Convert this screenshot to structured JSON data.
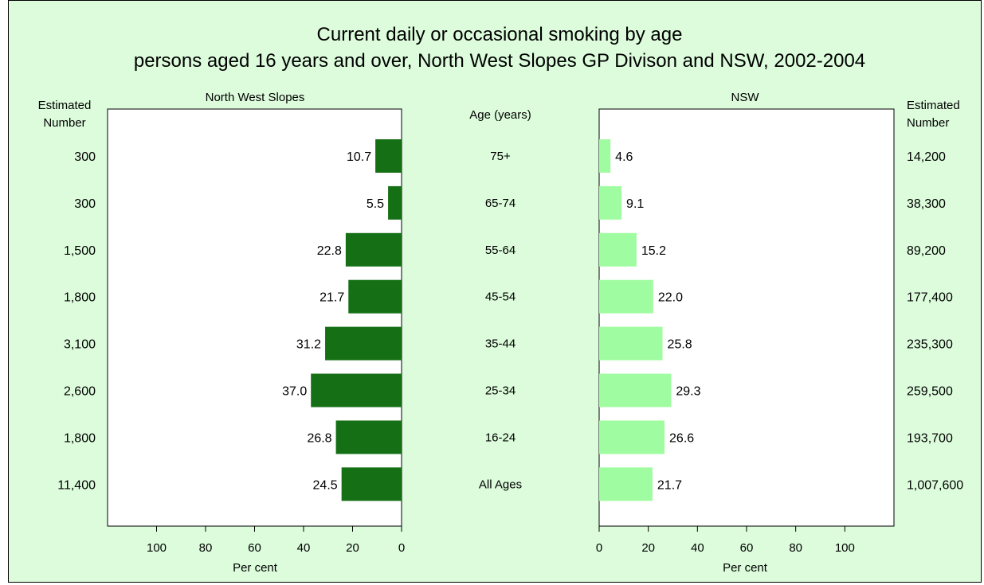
{
  "chart_data": {
    "type": "bar",
    "orientation": "horizontal",
    "title_line1": "Current daily or occasional smoking by age",
    "title_line2": "persons aged 16 years and over, North West Slopes GP Divison and NSW, 2002-2004",
    "center_label": "Age (years)",
    "estimated_label_line1": "Estimated",
    "estimated_label_line2": "Number",
    "xlabel": "Per cent",
    "xlim": [
      0,
      120
    ],
    "ticks": [
      0,
      20,
      40,
      60,
      80,
      100
    ],
    "categories": [
      "75+",
      "65-74",
      "55-64",
      "45-54",
      "35-44",
      "25-34",
      "16-24",
      "All Ages"
    ],
    "colors": {
      "left": "#157015",
      "right": "#a0fca0",
      "background": "#dcfcdc"
    },
    "series": [
      {
        "name": "North West Slopes",
        "side": "left",
        "values": [
          10.7,
          5.5,
          22.8,
          21.7,
          31.2,
          37.0,
          26.8,
          24.5
        ],
        "value_labels": [
          "10.7",
          "5.5",
          "22.8",
          "21.7",
          "31.2",
          "37.0",
          "26.8",
          "24.5"
        ],
        "estimated": [
          "300",
          "300",
          "1,500",
          "1,800",
          "3,100",
          "2,600",
          "1,800",
          "11,400"
        ]
      },
      {
        "name": "NSW",
        "side": "right",
        "values": [
          4.6,
          9.1,
          15.2,
          22.0,
          25.8,
          29.3,
          26.6,
          21.7
        ],
        "value_labels": [
          "4.6",
          "9.1",
          "15.2",
          "22.0",
          "25.8",
          "29.3",
          "26.6",
          "21.7"
        ],
        "estimated": [
          "14,200",
          "38,300",
          "89,200",
          "177,400",
          "235,300",
          "259,500",
          "193,700",
          "1,007,600"
        ]
      }
    ]
  }
}
